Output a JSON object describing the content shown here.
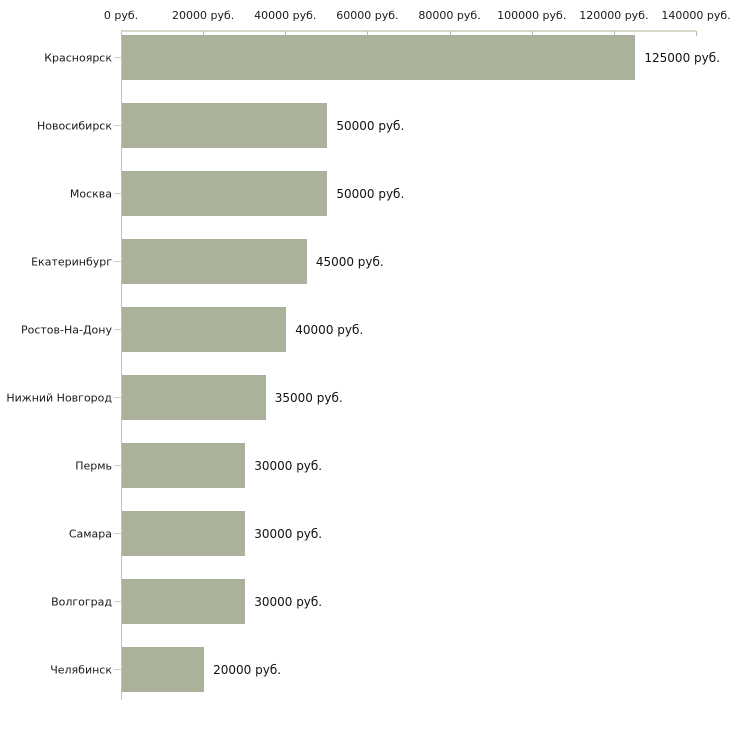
{
  "chart_data": {
    "type": "bar",
    "orientation": "horizontal",
    "title": "",
    "categories": [
      "Красноярск",
      "Новосибирск",
      "Москва",
      "Екатеринбург",
      "Ростов-На-Дону",
      "Нижний Новгород",
      "Пермь",
      "Самара",
      "Волгоград",
      "Челябинск"
    ],
    "values": [
      125000,
      50000,
      50000,
      45000,
      40000,
      35000,
      30000,
      30000,
      30000,
      20000
    ],
    "value_labels": [
      "125000 руб.",
      "50000 руб.",
      "50000 руб.",
      "45000 руб.",
      "40000 руб.",
      "35000 руб.",
      "30000 руб.",
      "30000 руб.",
      "30000 руб.",
      "20000 руб."
    ],
    "x_axis": {
      "min": 0,
      "max": 140000,
      "unit": "руб.",
      "tick_values": [
        0,
        20000,
        40000,
        60000,
        80000,
        100000,
        120000,
        140000
      ],
      "tick_labels": [
        "0 руб.",
        "20000 руб.",
        "40000 руб.",
        "60000 руб.",
        "80000 руб.",
        "100000 руб.",
        "120000 руб.",
        "140000 руб."
      ]
    },
    "legend": false,
    "grid": false,
    "colors": {
      "background": "#ffffff",
      "bar": "#abb29b",
      "x_axis_line": "#d9d9c7",
      "x_tick": "#bdbd9d",
      "y_axis_line": "#c2c2c2",
      "category_tick": "#d2d2ba",
      "text": "#1a1a1a"
    }
  }
}
